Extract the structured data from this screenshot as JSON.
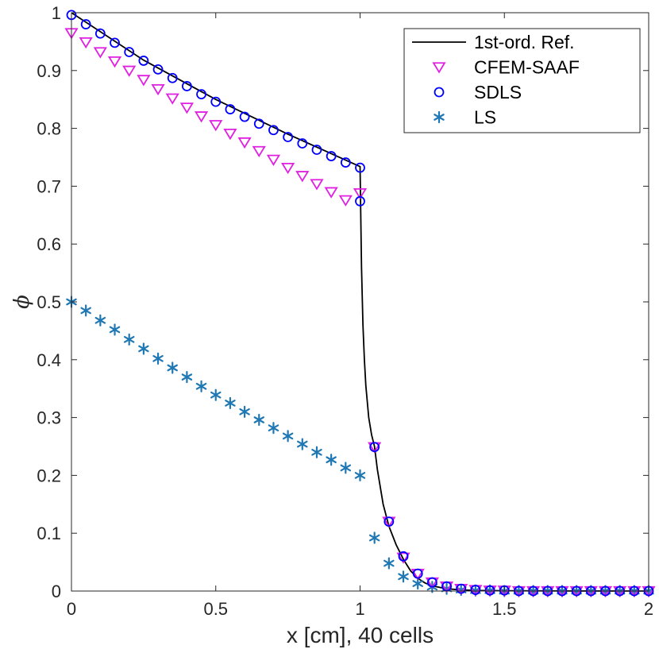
{
  "chart_data": {
    "type": "line",
    "title": "",
    "xlabel": "x [cm], 40 cells",
    "ylabel": "ϕ",
    "xlim": [
      0,
      2
    ],
    "ylim": [
      0,
      1
    ],
    "xticks": [
      0,
      0.5,
      1,
      1.5,
      2
    ],
    "xtick_labels": [
      "0",
      "0.5",
      "1",
      "1.5",
      "2"
    ],
    "yticks": [
      0,
      0.1,
      0.2,
      0.3,
      0.4,
      0.5,
      0.6,
      0.7,
      0.8,
      0.9,
      1
    ],
    "ytick_labels": [
      "0",
      "0.1",
      "0.2",
      "0.3",
      "0.4",
      "0.5",
      "0.6",
      "0.7",
      "0.8",
      "0.9",
      "1"
    ],
    "grid": false,
    "legend_position": "top-right",
    "series": [
      {
        "name": "1st-ord. Ref.",
        "style": "line",
        "color": "#000000",
        "x": [
          0,
          0.25,
          0.5,
          0.75,
          1.0,
          1.0,
          1.005,
          1.01,
          1.015,
          1.02,
          1.03,
          1.04,
          1.05,
          1.06,
          1.08,
          1.1,
          1.125,
          1.15,
          1.175,
          1.2,
          1.225,
          1.25,
          1.3,
          1.35,
          1.4,
          1.5,
          1.75,
          2.0
        ],
        "y": [
          1.0,
          0.918,
          0.85,
          0.79,
          0.734,
          0.734,
          0.56,
          0.46,
          0.4,
          0.355,
          0.3,
          0.27,
          0.25,
          0.21,
          0.15,
          0.112,
          0.08,
          0.055,
          0.035,
          0.022,
          0.014,
          0.009,
          0.004,
          0.002,
          0.001,
          0.0005,
          0.0001,
          0.0
        ]
      },
      {
        "name": "CFEM-SAAF",
        "style": "triangle-down",
        "color": "#e020e0",
        "x": [
          0,
          0.05,
          0.1,
          0.15,
          0.2,
          0.25,
          0.3,
          0.35,
          0.4,
          0.45,
          0.5,
          0.55,
          0.6,
          0.65,
          0.7,
          0.75,
          0.8,
          0.85,
          0.9,
          0.95,
          1.0,
          1.05,
          1.1,
          1.15,
          1.2,
          1.25,
          1.3,
          1.35,
          1.4,
          1.45,
          1.5,
          1.55,
          1.6,
          1.65,
          1.7,
          1.75,
          1.8,
          1.85,
          1.9,
          1.95,
          2.0
        ],
        "y": [
          0.965,
          0.949,
          0.932,
          0.916,
          0.9,
          0.884,
          0.868,
          0.852,
          0.836,
          0.821,
          0.806,
          0.791,
          0.776,
          0.761,
          0.746,
          0.732,
          0.718,
          0.704,
          0.69,
          0.676,
          0.688,
          0.249,
          0.12,
          0.058,
          0.03,
          0.015,
          0.008,
          0.004,
          0.002,
          0.001,
          0.001,
          0.0,
          0.0,
          0.0,
          0.0,
          0.0,
          0.0,
          0.0,
          0.0,
          0.0,
          0.0
        ]
      },
      {
        "name": "SDLS",
        "style": "circle",
        "color": "#0000ff",
        "x": [
          0,
          0.05,
          0.1,
          0.15,
          0.2,
          0.25,
          0.3,
          0.35,
          0.4,
          0.45,
          0.5,
          0.55,
          0.6,
          0.65,
          0.7,
          0.75,
          0.8,
          0.85,
          0.9,
          0.95,
          1.0,
          1.0,
          1.05,
          1.1,
          1.15,
          1.2,
          1.25,
          1.3,
          1.35,
          1.4,
          1.45,
          1.5,
          1.55,
          1.6,
          1.65,
          1.7,
          1.75,
          1.8,
          1.85,
          1.9,
          1.95,
          2.0
        ],
        "y": [
          0.996,
          0.98,
          0.964,
          0.948,
          0.932,
          0.917,
          0.902,
          0.887,
          0.873,
          0.859,
          0.846,
          0.833,
          0.82,
          0.808,
          0.797,
          0.785,
          0.774,
          0.763,
          0.752,
          0.741,
          0.732,
          0.674,
          0.249,
          0.12,
          0.06,
          0.03,
          0.015,
          0.008,
          0.004,
          0.002,
          0.001,
          0.001,
          0.0,
          0.0,
          0.0,
          0.0,
          0.0,
          0.0,
          0.0,
          0.0,
          0.0,
          0.0
        ]
      },
      {
        "name": "LS",
        "style": "asterisk",
        "color": "#1f78b4",
        "x": [
          0,
          0.05,
          0.1,
          0.15,
          0.2,
          0.25,
          0.3,
          0.35,
          0.4,
          0.45,
          0.5,
          0.55,
          0.6,
          0.65,
          0.7,
          0.75,
          0.8,
          0.85,
          0.9,
          0.95,
          1.0,
          1.05,
          1.1,
          1.15,
          1.2,
          1.25,
          1.3,
          1.35,
          1.4,
          1.45,
          1.5,
          1.55,
          1.6,
          1.65,
          1.7,
          1.75,
          1.8,
          1.85,
          1.9,
          1.95,
          2.0
        ],
        "y": [
          0.5,
          0.485,
          0.468,
          0.452,
          0.435,
          0.419,
          0.402,
          0.386,
          0.37,
          0.354,
          0.339,
          0.325,
          0.31,
          0.296,
          0.282,
          0.268,
          0.254,
          0.24,
          0.227,
          0.213,
          0.2,
          0.092,
          0.048,
          0.025,
          0.013,
          0.007,
          0.004,
          0.002,
          0.001,
          0.001,
          0.0,
          0.0,
          0.0,
          0.0,
          0.0,
          0.0,
          0.0,
          0.0,
          0.0,
          0.0,
          0.0
        ]
      }
    ]
  }
}
